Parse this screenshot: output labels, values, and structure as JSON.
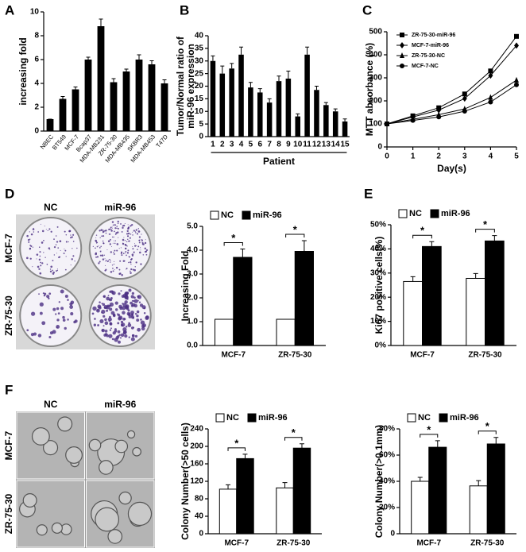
{
  "panels": [
    "A",
    "B",
    "C",
    "D",
    "E",
    "F"
  ],
  "photos": [
    {
      "columns": [
        "NC",
        "miR-96"
      ],
      "rows": [
        "MCF-7",
        "ZR-75-30"
      ]
    },
    {
      "columns": [
        "NC",
        "miR-96"
      ],
      "rows": [
        "MCF-7",
        "ZR-75-30"
      ]
    }
  ],
  "chart_data": [
    {
      "type": "bar",
      "ylabel": "increasing fold",
      "categories": [
        "NBEC",
        "BT549",
        "MCF-7",
        "Bcap37",
        "MDA-MB231",
        "ZR-75-30",
        "MDA-MB435",
        "SKBR3",
        "MDA-MB453",
        "T47D"
      ],
      "values": [
        1,
        2.7,
        3.5,
        6,
        8.8,
        4.1,
        5,
        6,
        5.6,
        4
      ],
      "errors": [
        0,
        0.2,
        0.2,
        0.2,
        0.6,
        0.3,
        0.2,
        0.4,
        0.3,
        0.3
      ],
      "color": "#000000",
      "ylim": [
        0,
        10
      ],
      "yticks": [
        0,
        2,
        4,
        6,
        8,
        10
      ]
    },
    {
      "type": "bar",
      "ylabel": [
        "Tumor/Normal ratio of",
        "miR-96 expression"
      ],
      "xlabel": "Patient",
      "categories": [
        "1",
        "2",
        "3",
        "4",
        "5",
        "6",
        "7",
        "8",
        "9",
        "10",
        "11",
        "12",
        "13",
        "14",
        "15"
      ],
      "values": [
        30,
        25,
        27,
        32.5,
        19.5,
        17.5,
        13.5,
        22,
        23,
        8,
        32.5,
        18.5,
        12.5,
        10,
        6
      ],
      "errors": [
        2,
        3,
        2,
        3,
        2,
        1.5,
        1.5,
        2,
        3,
        1,
        3,
        1.5,
        1,
        1,
        1
      ],
      "color": "#000000",
      "ylim": [
        0,
        40
      ],
      "yticks": [
        0,
        5,
        10,
        15,
        20,
        25,
        30,
        35,
        40
      ]
    },
    {
      "type": "line",
      "ylabel": "MTT absorbance (%)",
      "xlabel": "Day(s)",
      "x": [
        0,
        1,
        2,
        3,
        4,
        5
      ],
      "xlim": [
        0,
        5
      ],
      "xticks": [
        0,
        1,
        2,
        3,
        4,
        5
      ],
      "ylim": [
        0,
        500
      ],
      "yticks": [
        0,
        100,
        200,
        300,
        400,
        500
      ],
      "series": [
        {
          "name": "ZR-75-30-miR-96",
          "color": "#000000",
          "marker": "square",
          "values": [
            100,
            135,
            170,
            230,
            330,
            480
          ]
        },
        {
          "name": "MCF-7-miR-96",
          "color": "#000000",
          "marker": "diamond",
          "values": [
            100,
            130,
            160,
            210,
            310,
            440
          ]
        },
        {
          "name": "ZR-75-30-NC",
          "color": "#000000",
          "marker": "triangle",
          "values": [
            100,
            120,
            140,
            165,
            215,
            290
          ]
        },
        {
          "name": "MCF-7-NC",
          "color": "#000000",
          "marker": "circle",
          "values": [
            100,
            115,
            130,
            155,
            195,
            270
          ]
        }
      ]
    },
    {
      "type": "grouped-bar",
      "ylabel": "Increasing Fold",
      "categories": [
        "MCF-7",
        "ZR-75-30"
      ],
      "ylim": [
        0,
        5
      ],
      "yticks": [
        {
          "value": 0,
          "label": "0.0"
        },
        {
          "value": 1,
          "label": "1.0"
        },
        {
          "value": 2,
          "label": "2.0"
        },
        {
          "value": 3,
          "label": "3.0"
        },
        {
          "value": 4,
          "label": "4.0"
        },
        {
          "value": 5,
          "label": "5.0"
        }
      ],
      "annotations": [
        "*",
        "*"
      ],
      "series": [
        {
          "name": "NC",
          "color": "#ffffff",
          "values": [
            1.1,
            1.1
          ],
          "errors": [
            0,
            0
          ]
        },
        {
          "name": "miR-96",
          "color": "#000000",
          "values": [
            3.7,
            3.95
          ],
          "errors": [
            0.35,
            0.45
          ]
        }
      ]
    },
    {
      "type": "grouped-bar",
      "ylabel": "Ki67 positive cells(%)",
      "categories": [
        "MCF-7",
        "ZR-75-30"
      ],
      "ylim": [
        0,
        50
      ],
      "yticks": [
        {
          "value": 0,
          "label": "0%"
        },
        {
          "value": 10,
          "label": "10%"
        },
        {
          "value": 20,
          "label": "20%"
        },
        {
          "value": 30,
          "label": "30%"
        },
        {
          "value": 40,
          "label": "40%"
        },
        {
          "value": 50,
          "label": "50%"
        }
      ],
      "annotations": [
        "*",
        "*"
      ],
      "series": [
        {
          "name": "NC",
          "color": "#ffffff",
          "values": [
            26.5,
            27.8
          ],
          "errors": [
            2,
            2
          ]
        },
        {
          "name": "miR-96",
          "color": "#000000",
          "values": [
            41,
            43.3
          ],
          "errors": [
            2,
            2.2
          ]
        }
      ]
    },
    {
      "type": "grouped-bar",
      "ylabel": "Colony Number(>50 cells)",
      "categories": [
        "MCF-7",
        "ZR-75-30"
      ],
      "ylim": [
        0,
        240
      ],
      "yticks": [
        0,
        40,
        80,
        120,
        160,
        200,
        240
      ],
      "annotations": [
        "*",
        "*"
      ],
      "series": [
        {
          "name": "NC",
          "color": "#ffffff",
          "values": [
            102,
            105
          ],
          "errors": [
            10,
            12
          ]
        },
        {
          "name": "miR-96",
          "color": "#000000",
          "values": [
            172,
            196
          ],
          "errors": [
            10,
            10
          ]
        }
      ]
    },
    {
      "type": "grouped-bar",
      "ylabel": "Colony Number(>0.1mm)",
      "categories": [
        "MCF-7",
        "ZR-75-30"
      ],
      "ylim": [
        0,
        80
      ],
      "yticks": [
        0,
        {
          "value": 20,
          "label": "20%"
        },
        {
          "value": 40,
          "label": "40%"
        },
        {
          "value": 60,
          "label": "60%"
        },
        {
          "value": 80,
          "label": "80%"
        }
      ],
      "annotations": [
        "*",
        "*"
      ],
      "series": [
        {
          "name": "NC",
          "color": "#ffffff",
          "values": [
            40,
            36.5
          ],
          "errors": [
            3,
            4
          ]
        },
        {
          "name": "miR-96",
          "color": "#000000",
          "values": [
            66,
            68.5
          ],
          "errors": [
            5,
            5
          ]
        }
      ]
    }
  ]
}
